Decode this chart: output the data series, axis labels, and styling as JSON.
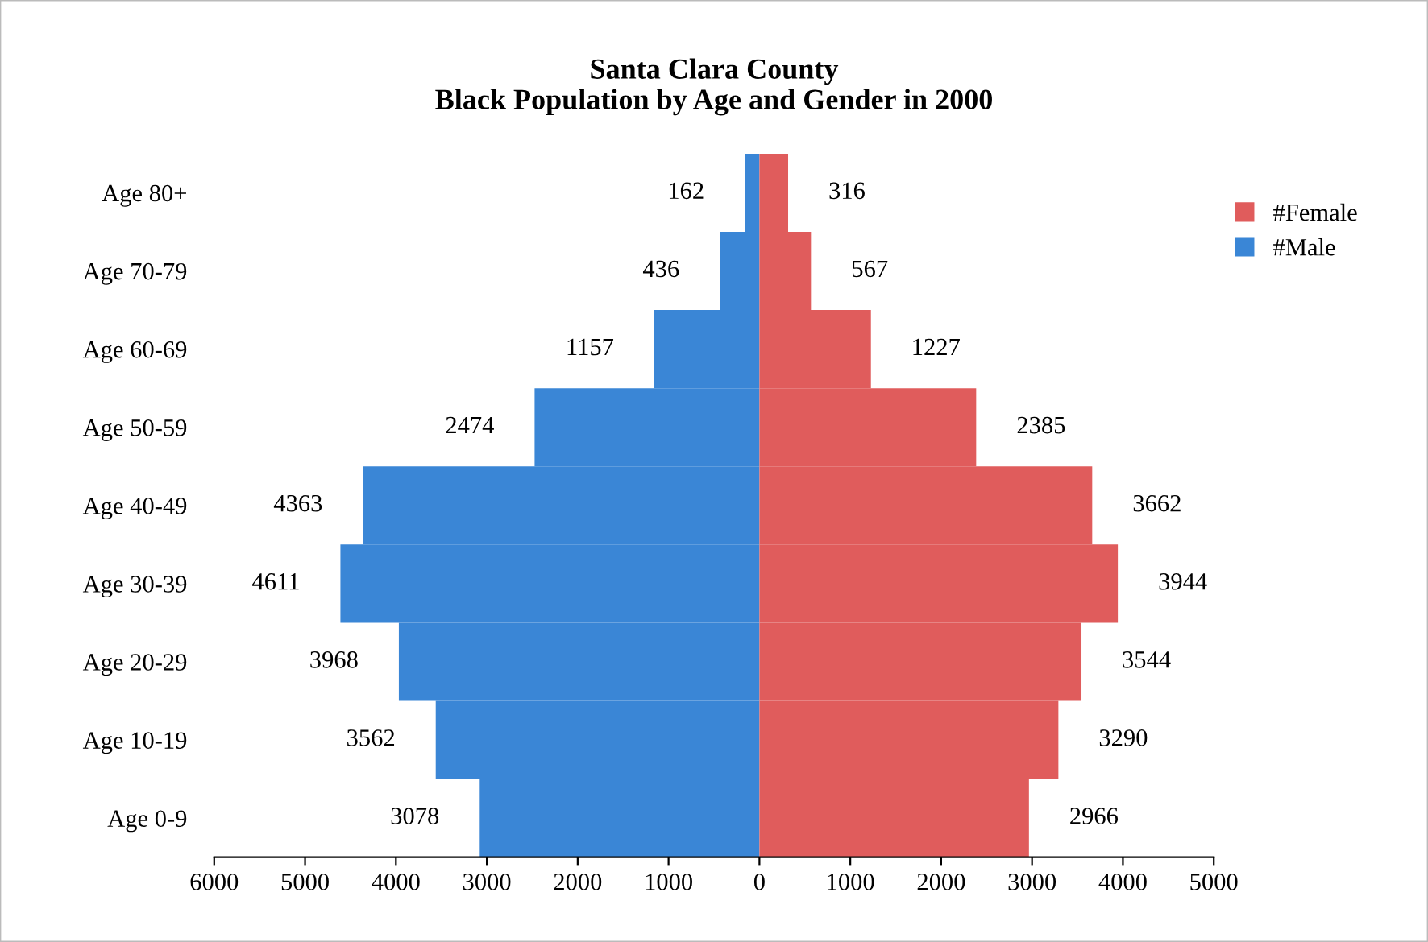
{
  "chart_data": {
    "type": "bar",
    "orientation": "horizontal",
    "title": "Santa Clara County\nBlack Population by Age and Gender in 2000",
    "categories": [
      "Age 80+",
      "Age 70-79",
      "Age 60-69",
      "Age 50-59",
      "Age 40-49",
      "Age 30-39",
      "Age 20-29",
      "Age 10-19",
      "Age 0-9"
    ],
    "series": [
      {
        "name": "#Male",
        "color": "#3a86d6",
        "values": [
          162,
          436,
          1157,
          2474,
          4363,
          4611,
          3968,
          3562,
          3078
        ],
        "base": [
          -162,
          -436,
          -1157,
          -2474,
          -4363,
          -4611,
          -3968,
          -3562,
          -3078
        ]
      },
      {
        "name": "#Female",
        "color": "#e05c5c",
        "values": [
          316,
          567,
          1227,
          2385,
          3662,
          3944,
          3544,
          3290,
          2966
        ],
        "base": [
          0,
          0,
          0,
          0,
          0,
          0,
          0,
          0,
          0
        ]
      }
    ],
    "data_labels": true,
    "xlim": [
      -6000,
      5000
    ],
    "xticks": [
      {
        "value": -6000,
        "label": "6000"
      },
      {
        "value": -5000,
        "label": "5000"
      },
      {
        "value": -4000,
        "label": "4000"
      },
      {
        "value": -3000,
        "label": "3000"
      },
      {
        "value": -2000,
        "label": "2000"
      },
      {
        "value": -1000,
        "label": "1000"
      },
      0,
      1000,
      2000,
      3000,
      4000,
      5000
    ],
    "grid": false,
    "legend": "right"
  }
}
